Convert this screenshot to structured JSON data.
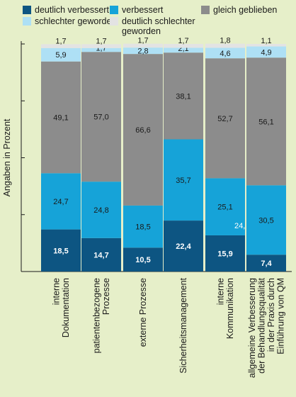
{
  "chart_data": {
    "type": "bar",
    "stacked": true,
    "ylabel": "Angaben in Prozent",
    "ylim": [
      0,
      100
    ],
    "categories": [
      "interne\nDokumentation",
      "patientenbezogene\nProzesse",
      "externe Prozesse",
      "Sicherheitsmanagement",
      "interne\nKommunikation",
      "allgemeine Verbesserung\nder Behandlungsqualität\nin der Praxis durch\nEinführung von QM"
    ],
    "series": [
      {
        "name": "deutlich verbessert",
        "color": "#0d5582",
        "label_color": "#ffffff",
        "values": [
          18.5,
          14.7,
          10.5,
          22.4,
          15.9,
          7.4
        ]
      },
      {
        "name": "verbessert",
        "color": "#16a3d8",
        "label_color": "#1a1a1a",
        "values": [
          24.7,
          24.8,
          18.5,
          35.7,
          25.1,
          30.5
        ]
      },
      {
        "name": "gleich geblieben",
        "color": "#8c8c8c",
        "label_color": "#1a1a1a",
        "values": [
          49.1,
          57.0,
          66.6,
          38.1,
          52.7,
          56.1
        ]
      },
      {
        "name": "schlechter geworden",
        "color": "#aee0f5",
        "label_color": "#1a1a1a",
        "values": [
          5.9,
          1.7,
          2.8,
          2.1,
          4.6,
          4.9
        ]
      },
      {
        "name": "deutlich schlechter\ngeworden",
        "color": "#e3e3e3",
        "label_color": "#1a1a1a",
        "values": [
          1.7,
          1.7,
          1.7,
          1.7,
          1.8,
          1.1
        ]
      }
    ],
    "display_labels": [
      [
        "18,5",
        "14,7",
        "10,5",
        "22,4",
        "15,9",
        "7,4"
      ],
      [
        "24,7",
        "24,8",
        "18,5",
        "35,7",
        "25,1",
        "30,5"
      ],
      [
        "49,1",
        "57,0",
        "66,6",
        "38,1",
        "52,7",
        "56,1"
      ],
      [
        "5,9",
        "1,7",
        "2,8",
        "2,1",
        "4,6",
        "4,9"
      ],
      [
        "1,7",
        "1,7",
        "1,7",
        "1,7",
        "1,8",
        "1,1"
      ]
    ],
    "stray_label": "24,",
    "legend_position": "top",
    "grid": false
  }
}
